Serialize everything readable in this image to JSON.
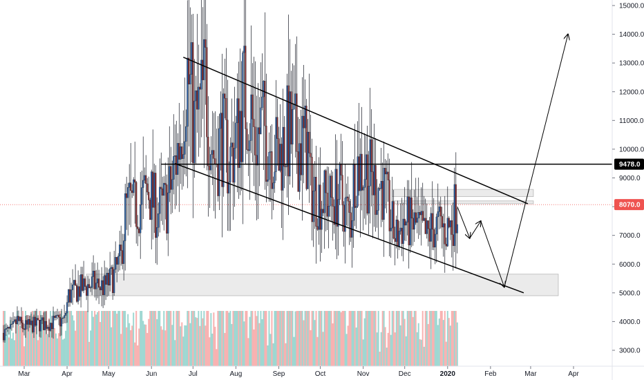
{
  "chart_data": {
    "type": "candlestick",
    "title": "",
    "xlabel": "",
    "ylabel": "",
    "ylim": [
      2500,
      15500
    ],
    "grid": false,
    "price_ticks": [
      3000,
      4000,
      5000,
      6000,
      7000,
      8000,
      9000,
      10000,
      11000,
      12000,
      13000,
      14000,
      15000
    ],
    "price_tick_labels": [
      "3000.0",
      "4000.0",
      "5000.0",
      "6000.0",
      "7000.0",
      "8000.0",
      "9000.0",
      "10000.0",
      "11000.0",
      "12000.0",
      "13000.0",
      "14000.0",
      "15000.0"
    ],
    "time_ticks": [
      {
        "date": "2019-03-01",
        "label": "Mar",
        "bold": false
      },
      {
        "date": "2019-04-01",
        "label": "Apr",
        "bold": false
      },
      {
        "date": "2019-05-01",
        "label": "May",
        "bold": false
      },
      {
        "date": "2019-06-01",
        "label": "Jun",
        "bold": false
      },
      {
        "date": "2019-07-01",
        "label": "Jul",
        "bold": false
      },
      {
        "date": "2019-08-01",
        "label": "Aug",
        "bold": false
      },
      {
        "date": "2019-09-01",
        "label": "Sep",
        "bold": false
      },
      {
        "date": "2019-10-01",
        "label": "Oct",
        "bold": false
      },
      {
        "date": "2019-11-01",
        "label": "Nov",
        "bold": false
      },
      {
        "date": "2019-12-01",
        "label": "Dec",
        "bold": false
      },
      {
        "date": "2020-01-01",
        "label": "2020",
        "bold": true
      },
      {
        "date": "2020-02-01",
        "label": "Feb",
        "bold": false
      },
      {
        "date": "2020-03-01",
        "label": "Mar",
        "bold": false
      },
      {
        "date": "2020-04-01",
        "label": "Apr",
        "bold": false
      }
    ],
    "series": [
      {
        "type": "close_path",
        "points": [
          [
            "2019-02-14",
            3600
          ],
          [
            "2019-02-20",
            3700
          ],
          [
            "2019-02-24",
            4050
          ],
          [
            "2019-02-28",
            3800
          ],
          [
            "2019-03-10",
            3900
          ],
          [
            "2019-03-20",
            3950
          ],
          [
            "2019-03-30",
            4050
          ],
          [
            "2019-04-02",
            4900
          ],
          [
            "2019-04-10",
            5150
          ],
          [
            "2019-04-20",
            5300
          ],
          [
            "2019-04-28",
            5200
          ],
          [
            "2019-05-05",
            5600
          ],
          [
            "2019-05-10",
            6200
          ],
          [
            "2019-05-13",
            7800
          ],
          [
            "2019-05-16",
            8100
          ],
          [
            "2019-05-20",
            7900
          ],
          [
            "2019-05-25",
            8200
          ],
          [
            "2019-05-30",
            8600
          ],
          [
            "2019-06-05",
            7800
          ],
          [
            "2019-06-12",
            8100
          ],
          [
            "2019-06-16",
            8900
          ],
          [
            "2019-06-22",
            10500
          ],
          [
            "2019-06-26",
            12900
          ],
          [
            "2019-06-29",
            12000
          ],
          [
            "2019-07-02",
            10800
          ],
          [
            "2019-07-06",
            11300
          ],
          [
            "2019-07-10",
            12300
          ],
          [
            "2019-07-14",
            10500
          ],
          [
            "2019-07-17",
            9600
          ],
          [
            "2019-07-22",
            10500
          ],
          [
            "2019-07-27",
            9500
          ],
          [
            "2019-08-02",
            10500
          ],
          [
            "2019-08-06",
            11800
          ],
          [
            "2019-08-10",
            11700
          ],
          [
            "2019-08-15",
            10300
          ],
          [
            "2019-08-20",
            10800
          ],
          [
            "2019-08-27",
            10200
          ],
          [
            "2019-09-01",
            9600
          ],
          [
            "2019-09-06",
            10500
          ],
          [
            "2019-09-12",
            10300
          ],
          [
            "2019-09-18",
            10200
          ],
          [
            "2019-09-22",
            10000
          ],
          [
            "2019-09-24",
            8600
          ],
          [
            "2019-10-01",
            8300
          ],
          [
            "2019-10-08",
            8200
          ],
          [
            "2019-10-15",
            8400
          ],
          [
            "2019-10-23",
            7500
          ],
          [
            "2019-10-26",
            9500
          ],
          [
            "2019-11-03",
            9300
          ],
          [
            "2019-11-09",
            8800
          ],
          [
            "2019-11-15",
            8700
          ],
          [
            "2019-11-22",
            7300
          ],
          [
            "2019-11-25",
            6900
          ],
          [
            "2019-11-30",
            7500
          ],
          [
            "2019-12-05",
            7400
          ],
          [
            "2019-12-10",
            7300
          ],
          [
            "2019-12-17",
            6900
          ],
          [
            "2019-12-20",
            7200
          ],
          [
            "2019-12-26",
            7300
          ],
          [
            "2019-12-31",
            7200
          ],
          [
            "2020-01-04",
            7400
          ],
          [
            "2020-01-07",
            8100
          ],
          [
            "2020-01-08",
            8070
          ]
        ]
      }
    ],
    "volume": {
      "start": "2019-02-14",
      "end": "2020-01-08",
      "scale_max": 4500,
      "bull_color": "#26a69a",
      "bear_color": "#ef5350"
    },
    "overlays": {
      "channel_upper": [
        [
          "2019-06-24",
          13200
        ],
        [
          "2020-02-28",
          8100
        ]
      ],
      "channel_lower": [
        [
          "2019-06-18",
          9500
        ],
        [
          "2020-02-25",
          5000
        ]
      ],
      "resistance": {
        "price": 9478,
        "from": "2019-06-08"
      },
      "zones": [
        {
          "from": "2019-04-15",
          "to": "2020-03-21",
          "top": 5650,
          "bottom": 4900
        },
        {
          "from": "2019-11-22",
          "to": "2020-03-03",
          "top": 8600,
          "bottom": 8350
        },
        {
          "from": "2019-11-22",
          "to": "2020-03-03",
          "top": 8200,
          "bottom": 8100
        }
      ],
      "projection_path": [
        [
          "2020-01-08",
          8000
        ],
        [
          "2020-01-17",
          6900
        ],
        [
          "2020-01-25",
          7500
        ],
        [
          "2020-02-11",
          5200
        ],
        [
          "2020-03-28",
          14000
        ]
      ]
    },
    "price_tags": [
      {
        "price": 9478,
        "label": "9478.0",
        "bg": "#000000",
        "fg": "#ffffff"
      },
      {
        "price": 8070,
        "label": "8070.0",
        "bg": "#ef5350",
        "fg": "#ffffff"
      }
    ],
    "current_price_line": {
      "price": 8070,
      "color": "#ef5350"
    }
  }
}
